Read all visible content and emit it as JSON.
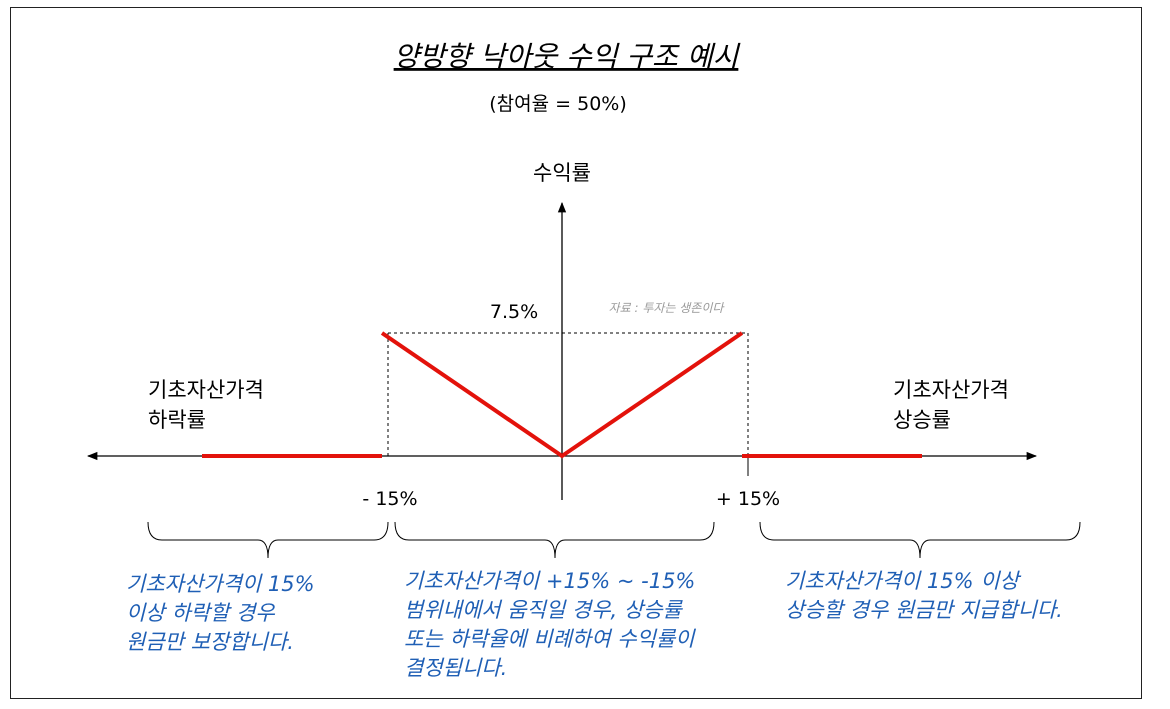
{
  "title": "양방향 낙아웃 수익 구조 예시",
  "subtitle": "(참여율 = 50%)",
  "y_axis_label": "수익률",
  "left_label": [
    "기초자산가격",
    "하락률"
  ],
  "right_label": [
    "기초자산가격",
    "상승률"
  ],
  "peak_label": "7.5%",
  "source": "자료 : 투자는 생존이다",
  "x_neg_label": "- 15%",
  "x_pos_label": "+ 15%",
  "notes": {
    "left": [
      "기초자산가격이 15%",
      "이상 하락할 경우",
      "원금만 보장합니다."
    ],
    "middle": [
      "기초자산가격이 +15% ~ -15%",
      "범위내에서 움직일 경우, 상승률",
      "또는 하락율에 비례하여 수익률이",
      "결정됩니다."
    ],
    "right": [
      "기초자산가격이 15% 이상",
      "상승할 경우 원금만 지급합니다."
    ]
  },
  "colors": {
    "payoff": "#e3120b",
    "note": "#1f5fb5",
    "source": "#9a9a9a"
  },
  "chart_data": {
    "type": "line",
    "series": [
      {
        "x": [
          -30,
          -15
        ],
        "y": [
          0,
          0
        ]
      },
      {
        "x": [
          -15,
          0,
          15
        ],
        "y": [
          7.5,
          0,
          7.5
        ]
      },
      {
        "x": [
          15,
          30
        ],
        "y": [
          0,
          0
        ]
      }
    ],
    "knock_out_levels": [
      -15,
      15
    ],
    "max_return": 7.5
  }
}
